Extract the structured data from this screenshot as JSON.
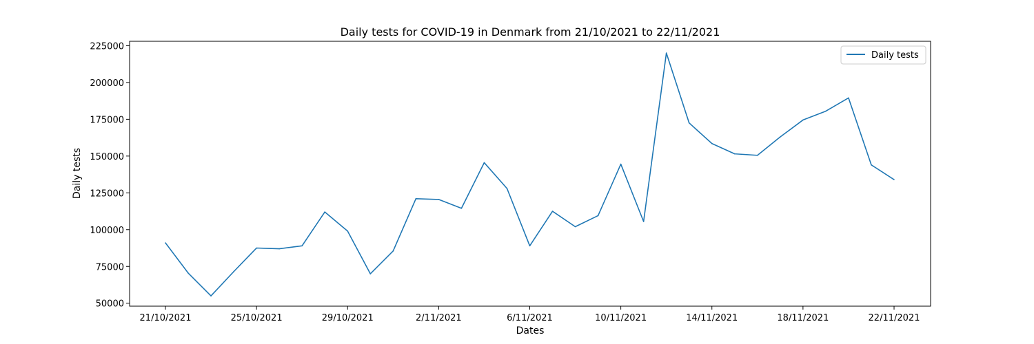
{
  "chart_data": {
    "type": "line",
    "title": "Daily tests for COVID-19 in Denmark from 21/10/2021 to 22/11/2021",
    "xlabel": "Dates",
    "ylabel": "Daily tests",
    "x": [
      "21/10/2021",
      "22/10/2021",
      "23/10/2021",
      "24/10/2021",
      "25/10/2021",
      "26/10/2021",
      "27/10/2021",
      "28/10/2021",
      "29/10/2021",
      "30/10/2021",
      "31/10/2021",
      "1/11/2021",
      "2/11/2021",
      "3/11/2021",
      "4/11/2021",
      "5/11/2021",
      "6/11/2021",
      "7/11/2021",
      "8/11/2021",
      "9/11/2021",
      "10/11/2021",
      "11/11/2021",
      "12/11/2021",
      "13/11/2021",
      "14/11/2021",
      "15/11/2021",
      "16/11/2021",
      "17/11/2021",
      "18/11/2021",
      "19/11/2021",
      "20/11/2021",
      "21/11/2021",
      "22/11/2021"
    ],
    "x_ticks": [
      "21/10/2021",
      "25/10/2021",
      "29/10/2021",
      "2/11/2021",
      "6/11/2021",
      "10/11/2021",
      "14/11/2021",
      "18/11/2021",
      "22/11/2021"
    ],
    "y_ticks": [
      50000,
      75000,
      100000,
      125000,
      150000,
      175000,
      200000,
      225000
    ],
    "ylim": [
      48000,
      228000
    ],
    "series": [
      {
        "name": "Daily tests",
        "color": "#1f77b4",
        "values": [
          91000,
          70500,
          55000,
          71500,
          87500,
          87000,
          89000,
          112000,
          99000,
          70000,
          85500,
          121000,
          120500,
          114500,
          145500,
          128000,
          89000,
          112500,
          102000,
          109500,
          144500,
          105500,
          220000,
          172500,
          158500,
          151500,
          150500,
          163000,
          174500,
          180500,
          189500,
          144000,
          134000
        ]
      }
    ],
    "legend_position": "top-right",
    "grid": false
  }
}
